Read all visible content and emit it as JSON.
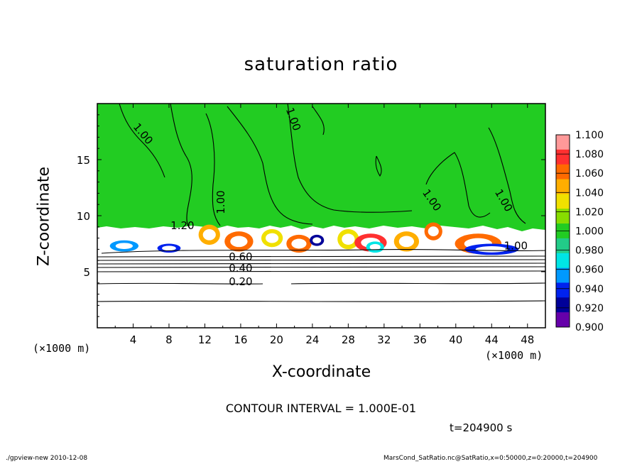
{
  "chart_data": {
    "type": "heatmap",
    "title": "saturation ratio",
    "xlabel": "X-coordinate",
    "ylabel": "Z-coordinate",
    "x_unit": "(×1000 m)",
    "x_ticks": [
      4,
      8,
      12,
      16,
      20,
      24,
      28,
      32,
      36,
      40,
      44,
      48
    ],
    "y_ticks": [
      5,
      10,
      15
    ],
    "xlim": [
      0,
      50
    ],
    "ylim": [
      0,
      20
    ],
    "colorbar": {
      "levels": [
        "1.100",
        "1.080",
        "1.060",
        "1.040",
        "1.020",
        "1.000",
        "0.980",
        "0.960",
        "0.940",
        "0.920",
        "0.900"
      ],
      "colors": [
        "#ff9999",
        "#ff3030",
        "#ff6a00",
        "#ffae00",
        "#f0e000",
        "#88dd00",
        "#22cc22",
        "#22cc88",
        "#00e5e5",
        "#0099ff",
        "#0022ee",
        "#000099",
        "#6600aa"
      ]
    },
    "contour_labels": [
      {
        "text": "1.00",
        "x": 4.8,
        "z": 17.1,
        "angle": 50
      },
      {
        "text": "1.00",
        "x": 21.5,
        "z": 18.5,
        "angle": 70
      },
      {
        "text": "1.00",
        "x": 14.2,
        "z": 11.2,
        "angle": -90
      },
      {
        "text": "1.00",
        "x": 37.0,
        "z": 11.2,
        "angle": 55
      },
      {
        "text": "1.00",
        "x": 45.0,
        "z": 11.2,
        "angle": 60
      },
      {
        "text": "1.20",
        "x": 9.5,
        "z": 8.8,
        "angle": 0
      },
      {
        "text": "0.60",
        "x": 16.0,
        "z": 6.0,
        "angle": 0
      },
      {
        "text": "0.40",
        "x": 16.0,
        "z": 5.0,
        "angle": 0
      },
      {
        "text": "0.20",
        "x": 16.0,
        "z": 3.8,
        "angle": 0
      },
      {
        "text": "1.00",
        "x": 46.7,
        "z": 7.0,
        "angle": 0
      }
    ],
    "contour_interval": "CONTOUR INTERVAL = 1.000E-01",
    "time": "t=204900 s"
  },
  "footer": {
    "left": "./gpview-new  2010-12-08",
    "right": "MarsCond_SatRatio.nc@SatRatio,x=0:50000,z=0:20000,t=204900"
  }
}
